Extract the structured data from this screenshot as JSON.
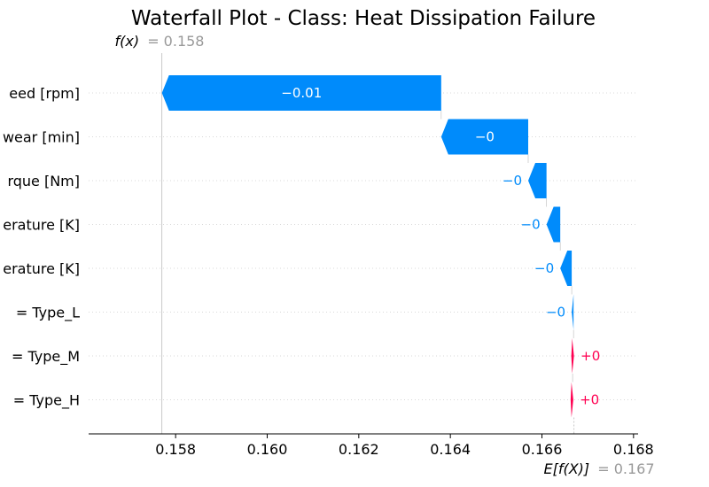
{
  "chart_data": {
    "type": "waterfall",
    "title": "Waterfall Plot - Class: Heat Dissipation Failure",
    "fx_label": "f(x)",
    "fx_value": "= 0.158",
    "efx_label": "E[f(X)]",
    "efx_value": "= 0.167",
    "base_value": 0.1667,
    "output_value": 0.1577,
    "xlim": [
      0.1561,
      0.1681
    ],
    "xticks": [
      "0.158",
      "0.160",
      "0.162",
      "0.164",
      "0.166",
      "0.168"
    ],
    "grid": "horizontal dotted",
    "colors": {
      "negative": "#008bfb",
      "positive": "#ff0051",
      "neutral": "#999999"
    },
    "features": [
      {
        "label": "eed [rpm]",
        "value": -0.0061,
        "text": "−0.01"
      },
      {
        "label": "wear [min]",
        "value": -0.0019,
        "text": "−0"
      },
      {
        "label": "rque [Nm]",
        "value": -0.0004,
        "text": "−0"
      },
      {
        "label": "erature [K]",
        "value": -0.0003,
        "text": "−0"
      },
      {
        "label": "erature [K]",
        "value": -0.00025,
        "text": "−0"
      },
      {
        "label": "= Type_L",
        "value": -4e-05,
        "text": "−0"
      },
      {
        "label": "= Type_M",
        "value": 2e-05,
        "text": "+0"
      },
      {
        "label": "= Type_H",
        "value": 1e-05,
        "text": "+0"
      }
    ]
  }
}
